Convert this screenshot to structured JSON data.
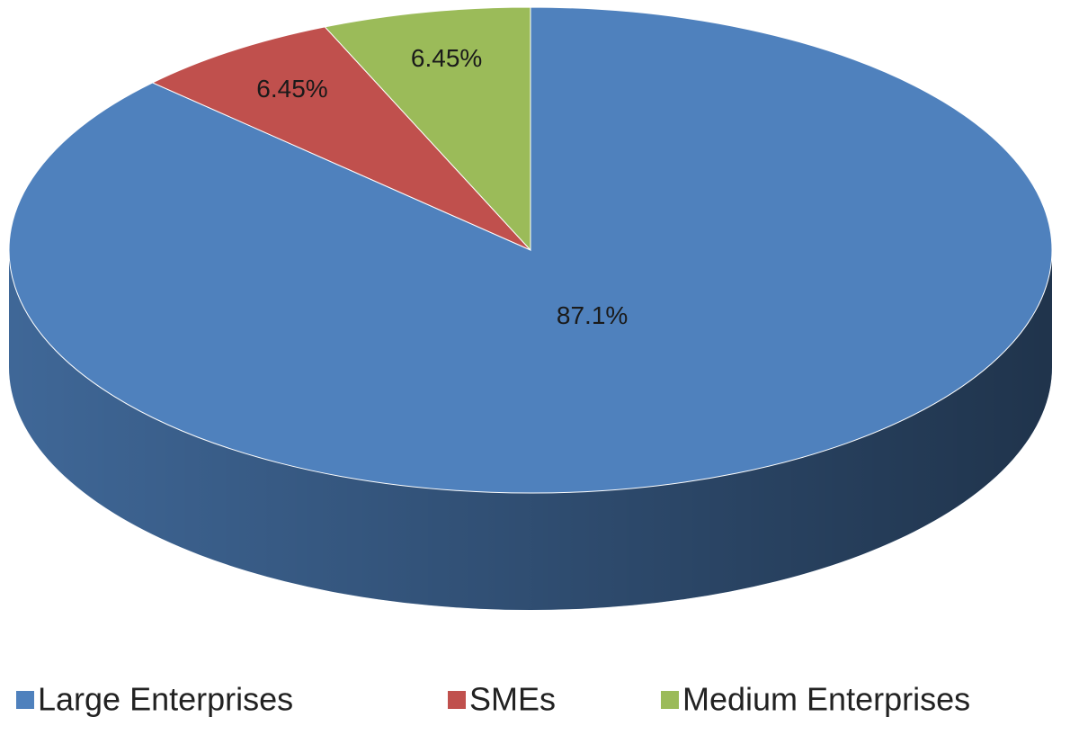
{
  "chart_data": {
    "type": "pie",
    "categories": [
      "Large Enterprises",
      "SMEs",
      "Medium Enterprises"
    ],
    "values": [
      87.1,
      6.45,
      6.45
    ],
    "value_labels": [
      "87.1%",
      "6.45%",
      "6.45%"
    ],
    "colors": [
      "#4f81bd",
      "#c0504d",
      "#9bbb59"
    ]
  }
}
